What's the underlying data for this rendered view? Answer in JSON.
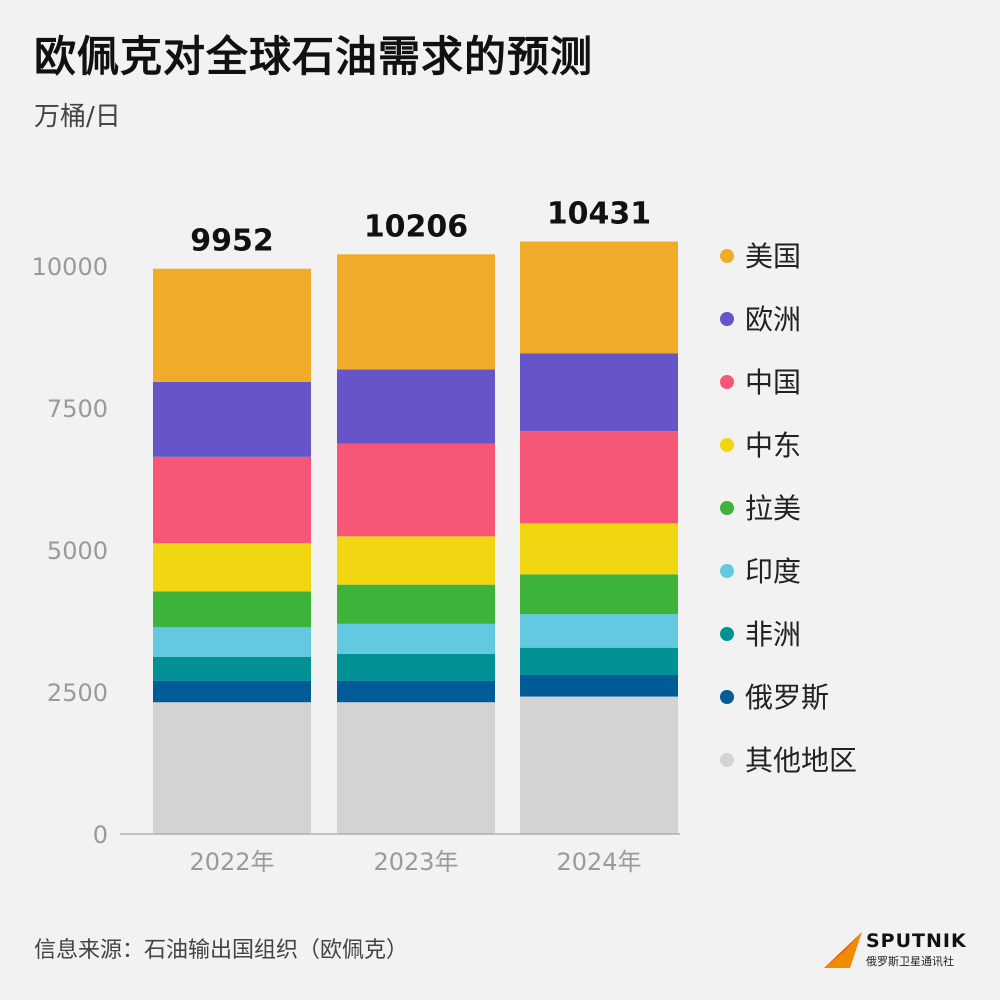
{
  "header": {
    "title": "欧佩克对全球石油需求的预测",
    "unit": "万桶/日"
  },
  "footer": {
    "source": "信息来源：石油输出国组织（欧佩克）"
  },
  "logo": {
    "name": "SPUTNIK",
    "sub": "俄罗斯卫星通讯社",
    "colors": [
      "#f08c00",
      "#e8601c"
    ]
  },
  "chart_data": {
    "type": "bar",
    "stacked": true,
    "categories": [
      "2022年",
      "2023年",
      "2024年"
    ],
    "totals": [
      "9952",
      "10206",
      "10431"
    ],
    "ylim": [
      0,
      10000
    ],
    "yticks": [
      0,
      2500,
      5000,
      7500,
      10000
    ],
    "legend_position": "right",
    "grid": false,
    "series": [
      {
        "name": "其他地区",
        "color": "#d3d3d3",
        "values": [
          2320,
          2320,
          2420
        ]
      },
      {
        "name": "俄罗斯",
        "color": "#005b96",
        "values": [
          380,
          380,
          380
        ]
      },
      {
        "name": "非洲",
        "color": "#009194",
        "values": [
          420,
          470,
          480
        ]
      },
      {
        "name": "印度",
        "color": "#62c9e1",
        "values": [
          520,
          530,
          590
        ]
      },
      {
        "name": "拉美",
        "color": "#3db33c",
        "values": [
          630,
          690,
          700
        ]
      },
      {
        "name": "中东",
        "color": "#f0d712",
        "values": [
          850,
          850,
          900
        ]
      },
      {
        "name": "中国",
        "color": "#f75777",
        "values": [
          1520,
          1630,
          1620
        ]
      },
      {
        "name": "欧洲",
        "color": "#6655c8",
        "values": [
          1320,
          1310,
          1370
        ]
      },
      {
        "name": "美国",
        "color": "#f0ac28",
        "values": [
          1992,
          2026,
          1971
        ]
      }
    ]
  }
}
